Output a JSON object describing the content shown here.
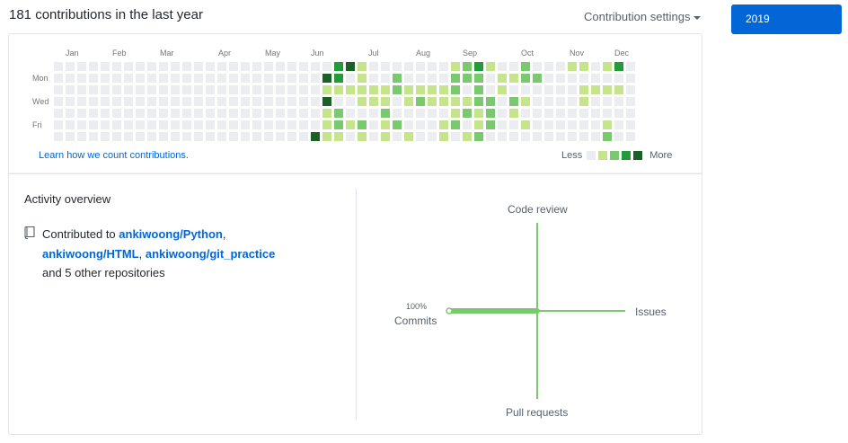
{
  "header": {
    "contributions_title": "181 contributions in the last year",
    "settings_label": "Contribution settings"
  },
  "year_selector": {
    "selected": "2019"
  },
  "calendar": {
    "months": [
      "Jan",
      "Feb",
      "Mar",
      "Apr",
      "May",
      "Jun",
      "Jul",
      "Aug",
      "Sep",
      "Oct",
      "Nov",
      "Dec"
    ],
    "day_labels": [
      "Mon",
      "Wed",
      "Fri"
    ],
    "colors": [
      "#ebedf0",
      "#c6e48b",
      "#7bc96f",
      "#239a3b",
      "#196127"
    ],
    "levels": [
      "00000000000000000000000034100000001231002000110130",
      "00000000000000000000000430100200002220112200000000",
      "00000000000000000000000111111211112020100000011110",
      "00000000000000000000000400111012111122021000010000",
      "00000000000000000000000120002000001212010000000000",
      "00000000000000000000000121201200012012001000000100",
      "00000000000000000000004110101010010120000000000200"
    ],
    "learn_link": "Learn how we count contributions.",
    "legend_less": "Less",
    "legend_more": "More"
  },
  "activity": {
    "title": "Activity overview",
    "contrib_prefix": "Contributed to ",
    "repos": [
      "ankiwoong/Python",
      "ankiwoong/HTML",
      "ankiwoong/git_practice"
    ],
    "separator": ",",
    "contrib_suffix": "and 5 other repositories",
    "repo_icon": "repo-icon"
  },
  "chart_data": {
    "type": "activity-axes",
    "axes": {
      "top": "Code review",
      "right": "Issues",
      "bottom": "Pull requests",
      "left": "Commits"
    },
    "values": {
      "Commits": 100,
      "Code review": 0,
      "Issues": 0,
      "Pull requests": 0
    },
    "commits_percent_label": "100%",
    "line_color": "#7bc96f"
  }
}
